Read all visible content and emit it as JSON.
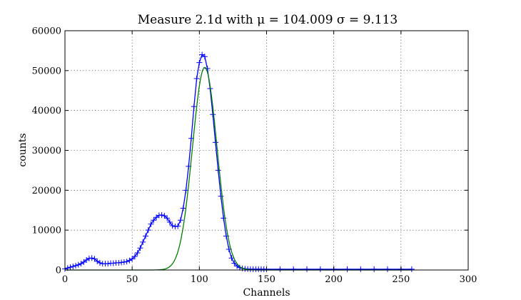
{
  "chart_data": {
    "type": "line",
    "title": "Measure 2.1d with μ = 104.009 σ = 9.113",
    "xlabel": "Channels",
    "ylabel": "counts",
    "xlim": [
      0,
      300
    ],
    "ylim": [
      0,
      60000
    ],
    "x_ticks": [
      0,
      50,
      100,
      150,
      200,
      250,
      300
    ],
    "y_ticks": [
      0,
      10000,
      20000,
      30000,
      40000,
      50000,
      60000
    ],
    "grid": true,
    "series": [
      {
        "color": "#0000ff",
        "marker": "+",
        "style": "line-with-markers",
        "x": [
          0,
          2,
          4,
          6,
          8,
          10,
          12,
          14,
          16,
          18,
          20,
          22,
          24,
          26,
          28,
          30,
          32,
          34,
          36,
          38,
          40,
          42,
          44,
          46,
          48,
          50,
          52,
          54,
          56,
          58,
          60,
          62,
          64,
          66,
          68,
          70,
          72,
          74,
          76,
          78,
          80,
          82,
          84,
          86,
          88,
          90,
          92,
          94,
          96,
          98,
          100,
          102,
          104,
          106,
          108,
          110,
          112,
          114,
          116,
          118,
          120,
          122,
          124,
          126,
          128,
          130,
          132,
          134,
          136,
          138,
          140,
          142,
          144,
          146,
          148,
          150,
          160,
          170,
          180,
          190,
          200,
          210,
          220,
          230,
          240,
          250,
          258
        ],
        "y": [
          300,
          500,
          700,
          900,
          1100,
          1300,
          1600,
          2000,
          2500,
          2900,
          3000,
          2800,
          2200,
          1800,
          1600,
          1600,
          1600,
          1700,
          1700,
          1800,
          1800,
          1900,
          2000,
          2100,
          2400,
          2800,
          3400,
          4300,
          5500,
          7000,
          8500,
          10000,
          11500,
          12500,
          13200,
          13700,
          13800,
          13600,
          13000,
          12000,
          11100,
          10900,
          11000,
          12500,
          15500,
          20000,
          26000,
          33000,
          41000,
          48000,
          52000,
          54000,
          53500,
          50500,
          45500,
          39000,
          32000,
          25000,
          18500,
          13000,
          8500,
          5200,
          3000,
          1700,
          1000,
          600,
          400,
          300,
          250,
          200,
          200,
          200,
          200,
          200,
          200,
          200,
          200,
          200,
          200,
          200,
          200,
          200,
          200,
          200,
          200,
          200,
          200
        ]
      },
      {
        "color": "#008000",
        "style": "line",
        "fit": "gaussian",
        "mu": 104.009,
        "sigma": 9.113,
        "amplitude": 50800,
        "x_range": [
          0,
          258
        ]
      }
    ]
  }
}
